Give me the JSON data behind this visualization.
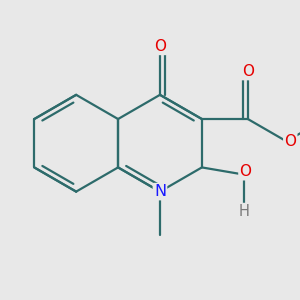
{
  "bg_color": "#e8e8e8",
  "bond_color": "#2d6b6b",
  "bond_width": 1.6,
  "dbo": 0.055,
  "atom_colors": {
    "O": "#e60000",
    "N": "#1a1aff",
    "H": "#7a7a7a"
  },
  "font_size": 10.5
}
